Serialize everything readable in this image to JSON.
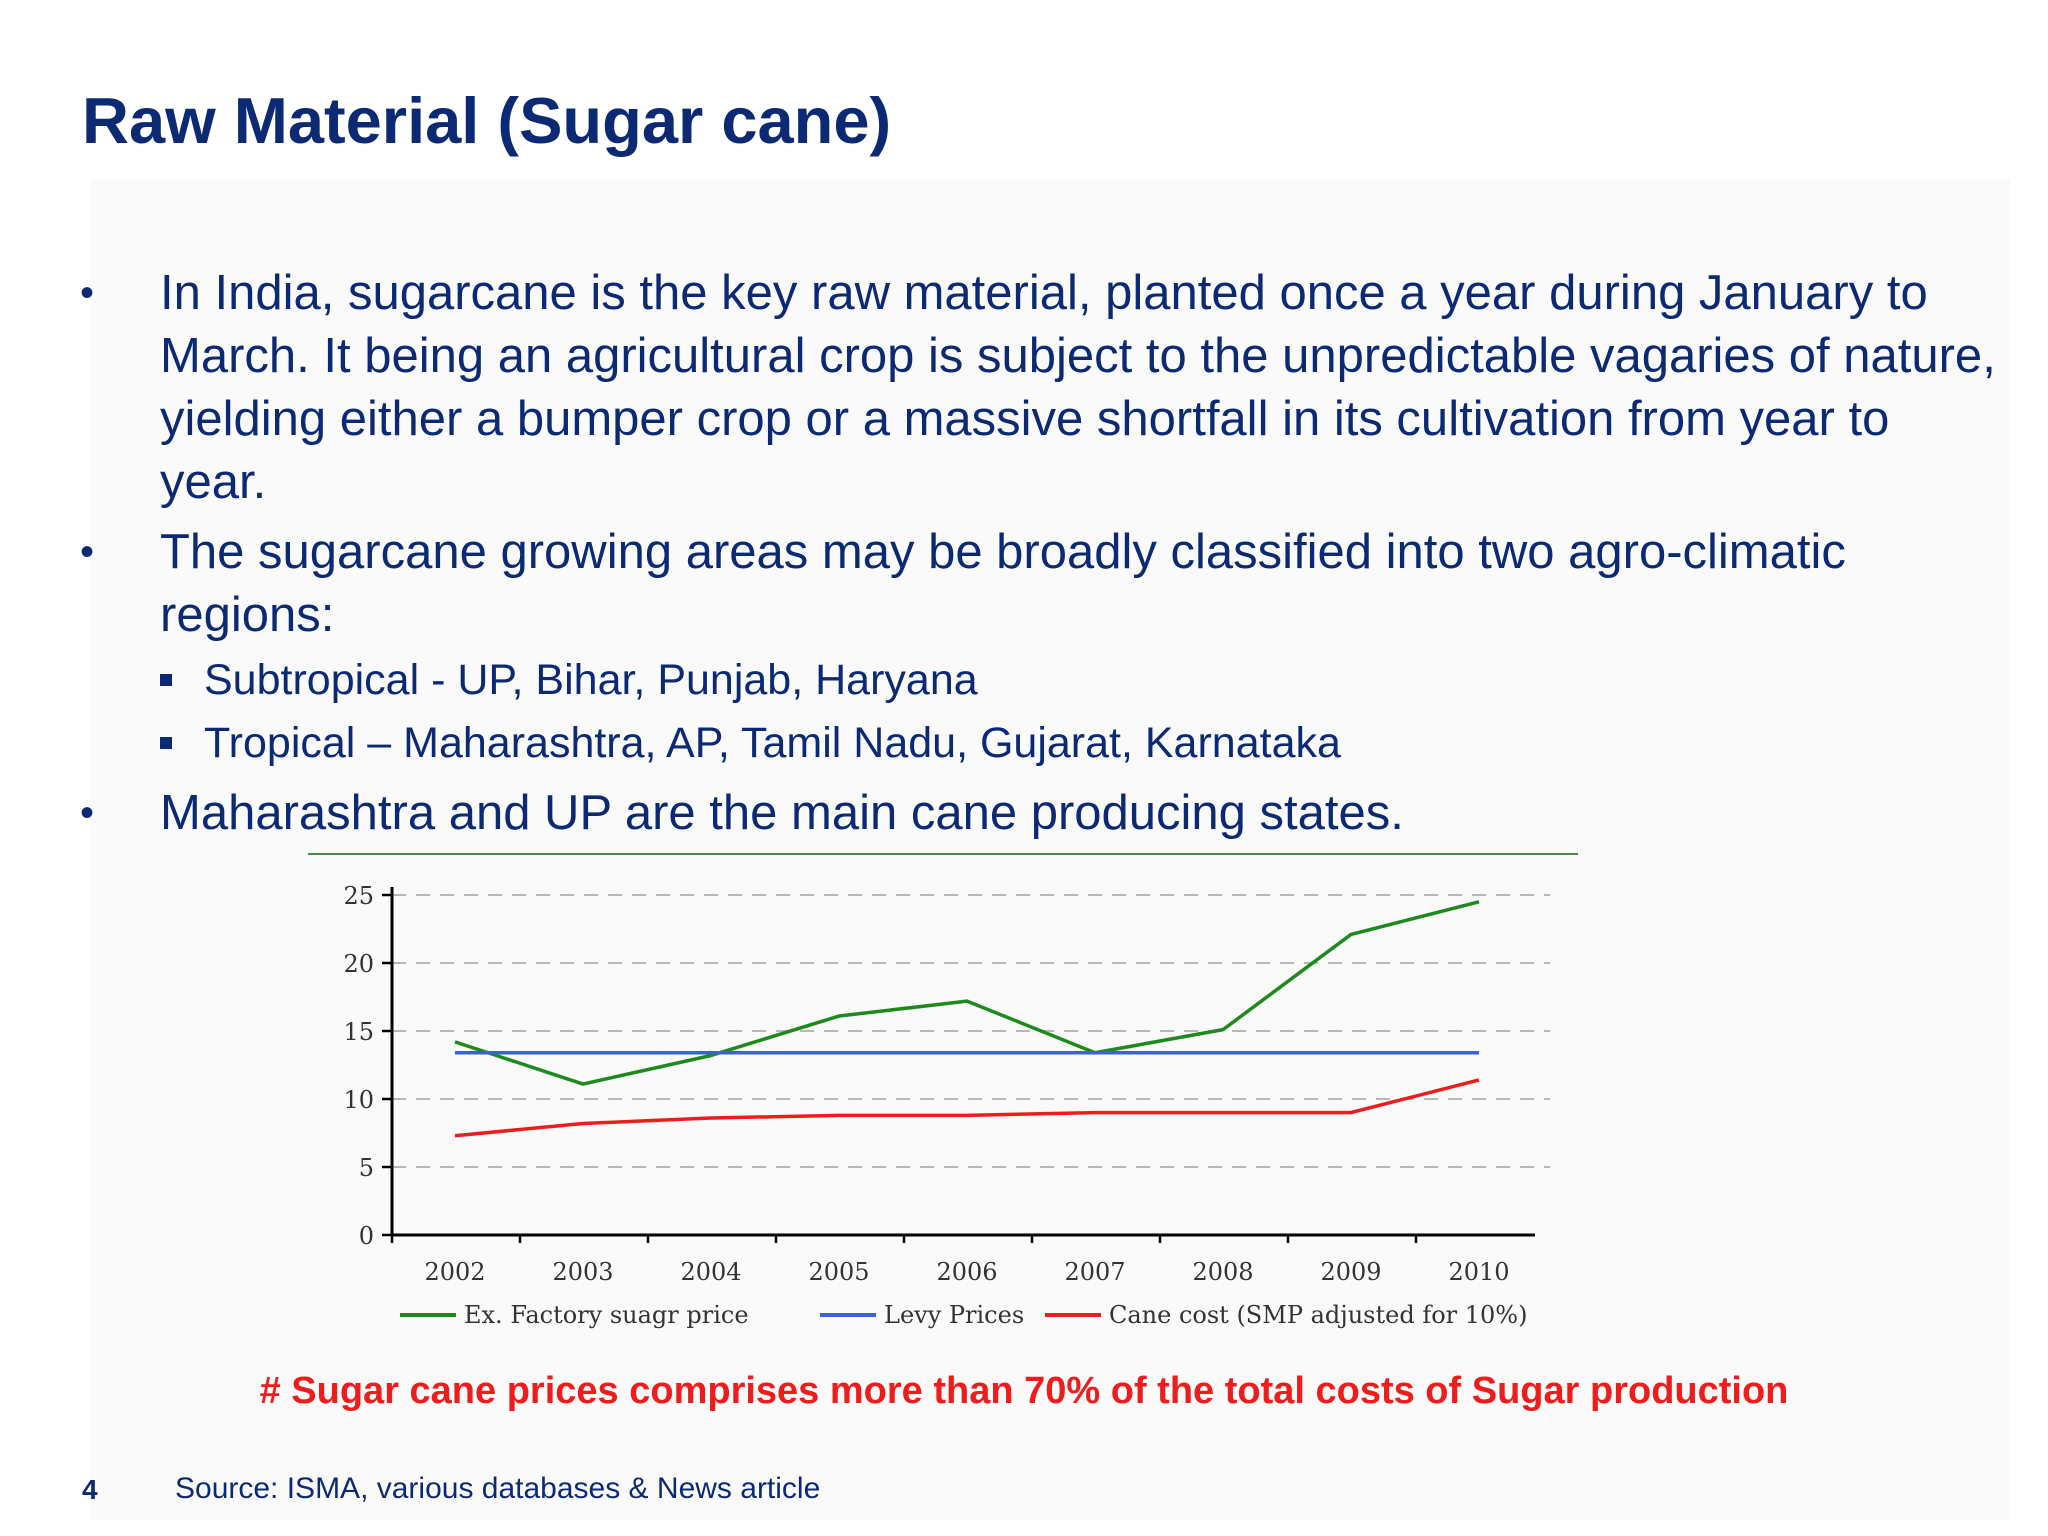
{
  "slide": {
    "title": "Raw Material (Sugar cane)",
    "bullet_symbol": "•",
    "bullets": [
      {
        "text": "In India, sugarcane is the key raw material, planted once a year during January to March. It being an agricultural crop is subject to the unpredictable vagaries of nature, yielding either a bumper crop or a massive shortfall in its cultivation from year to year."
      },
      {
        "text": "The sugarcane growing areas may be broadly classified into two agro-climatic regions:"
      },
      {
        "text": "Maharashtra and UP are the main cane producing states."
      }
    ],
    "sub_bullets": [
      "Subtropical -  UP, Bihar, Punjab, Haryana",
      "Tropical – Maharashtra, AP, Tamil Nadu, Gujarat, Karnataka"
    ],
    "note": "# Sugar cane prices comprises more than 70% of the total costs of Sugar production",
    "page_number": "4",
    "source": "Source: ISMA, various databases & News article",
    "colors": {
      "title": "#0b2a73",
      "note": "#ee1c1c",
      "divider": "#4a8a4a"
    }
  },
  "chart_data": {
    "type": "line",
    "x": [
      "2002",
      "2003",
      "2004",
      "2005",
      "2006",
      "2007",
      "2008",
      "2009",
      "2010"
    ],
    "ylim": [
      0,
      25
    ],
    "yticks": [
      "0",
      "5",
      "10",
      "15",
      "20",
      "25"
    ],
    "grid": "horizontal dashed",
    "legend_position": "bottom",
    "series": [
      {
        "name": "Ex. Factory suagr price",
        "color": "#1e8a1e",
        "values": [
          14.2,
          11.1,
          13.2,
          16.1,
          17.2,
          13.4,
          15.1,
          22.1,
          24.5
        ]
      },
      {
        "name": "Levy Prices",
        "color": "#3a5fe0",
        "values": [
          13.4,
          13.4,
          13.4,
          13.4,
          13.4,
          13.4,
          13.4,
          13.4,
          13.4
        ]
      },
      {
        "name": "Cane cost (SMP adjusted for 10%)",
        "color": "#ee1c1c",
        "values": [
          7.3,
          8.2,
          8.6,
          8.8,
          8.8,
          9.0,
          9.0,
          9.0,
          11.4
        ]
      }
    ]
  }
}
